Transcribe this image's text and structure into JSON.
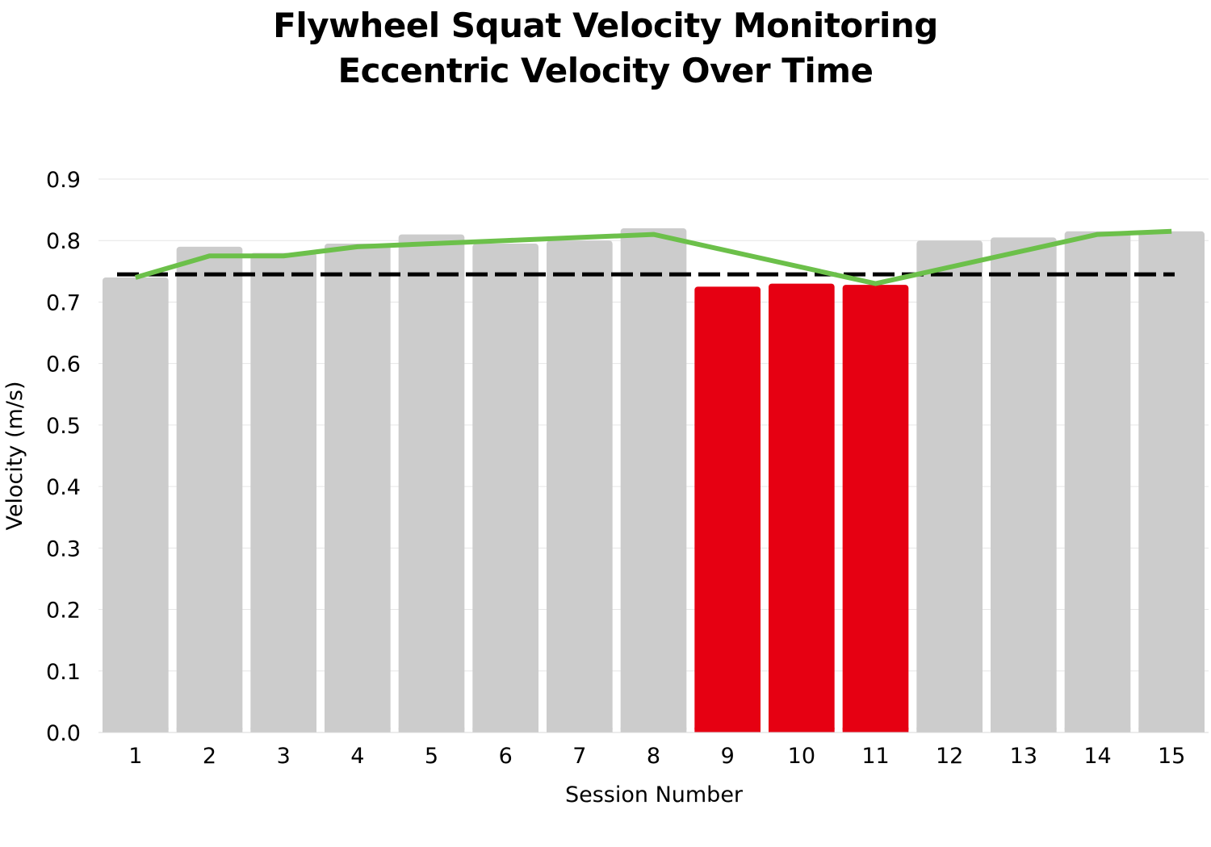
{
  "colors": {
    "bar_default": "#cccccc",
    "bar_highlight": "#e60012",
    "trend_line": "#6cc04a",
    "reference_line": "#000000",
    "gridline": "#e6e6e6"
  },
  "chart_data": {
    "type": "bar",
    "title": "Flywheel Squat Velocity Monitoring",
    "subtitle": "Eccentric Velocity Over Time",
    "xlabel": "Session Number",
    "ylabel": "Velocity (m/s)",
    "ylim": [
      0,
      0.9
    ],
    "yticks": [
      "0.0",
      "0.1",
      "0.2",
      "0.3",
      "0.4",
      "0.5",
      "0.6",
      "0.7",
      "0.8",
      "0.9"
    ],
    "ytick_values": [
      0,
      0.1,
      0.2,
      0.3,
      0.4,
      0.5,
      0.6,
      0.7,
      0.8,
      0.9
    ],
    "grid": true,
    "categories": [
      "1",
      "2",
      "3",
      "4",
      "5",
      "6",
      "7",
      "8",
      "9",
      "10",
      "11",
      "12",
      "13",
      "14",
      "15"
    ],
    "values": [
      0.74,
      0.79,
      0.78,
      0.795,
      0.81,
      0.795,
      0.8,
      0.82,
      0.725,
      0.73,
      0.728,
      0.8,
      0.805,
      0.815,
      0.815
    ],
    "highlighted_categories": [
      "9",
      "10",
      "11"
    ],
    "trend_line": [
      0.74,
      0.775,
      0.775,
      0.79,
      0.795,
      0.8,
      0.805,
      0.81,
      null,
      null,
      0.73,
      null,
      null,
      0.81,
      0.815
    ],
    "reference_line": 0.745
  }
}
